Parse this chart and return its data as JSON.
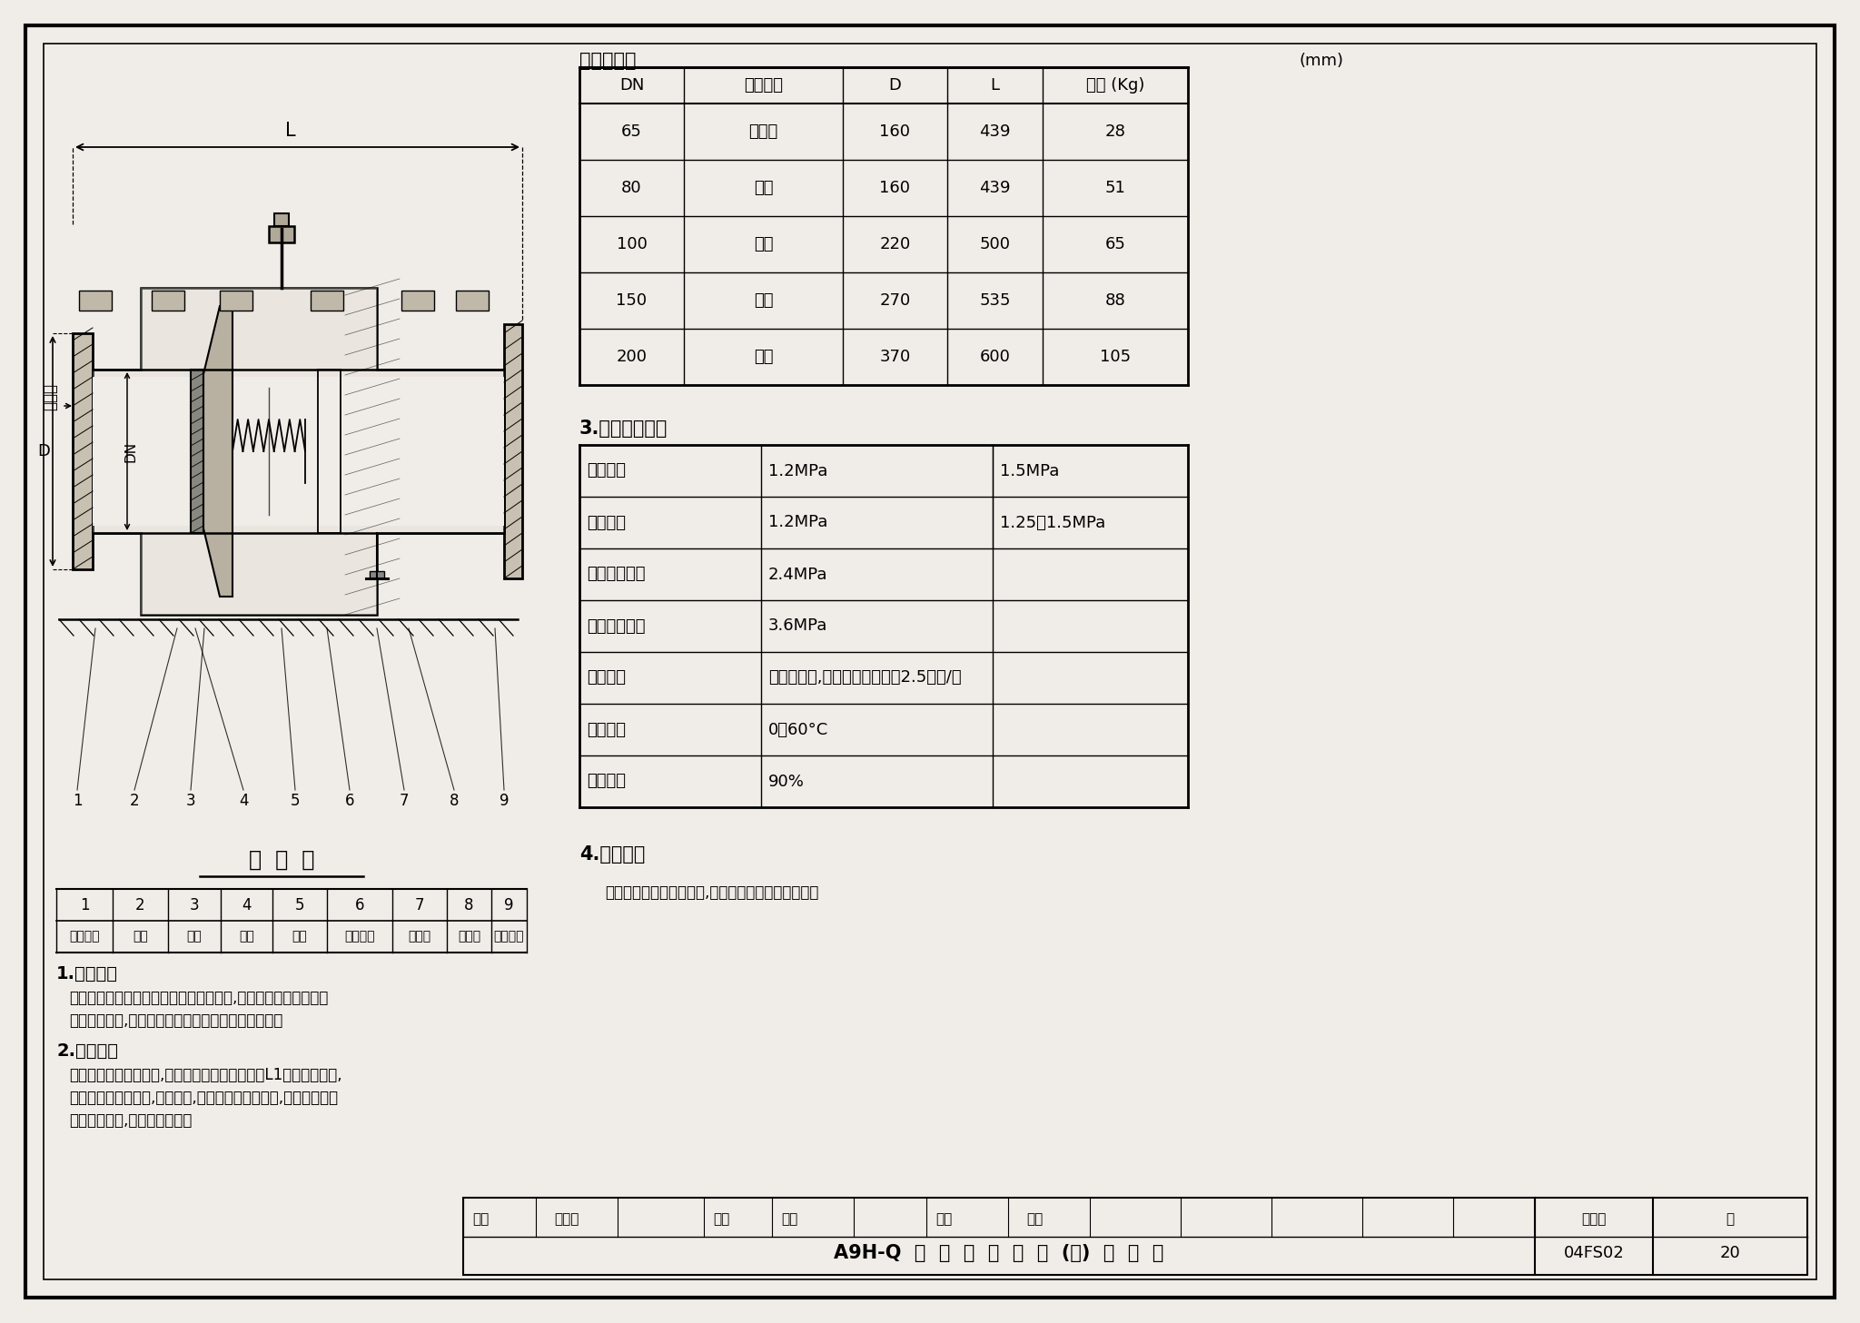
{
  "bg_color": "#f0ede8",
  "title": "A9H-Q  型  防  爆  波  阀  门  (乙)  选  用  图",
  "drawing_number": "04FS02",
  "page": "20",
  "spec_table_title": "规格尺寸表",
  "spec_table_unit": "(mm)",
  "spec_headers": [
    "DN",
    "连接方式",
    "D",
    "L",
    "重量 (Kg)"
  ],
  "spec_rows": [
    [
      "65",
      "管螺纹",
      "160",
      "439",
      "28"
    ],
    [
      "80",
      "法兰",
      "160",
      "439",
      "51"
    ],
    [
      "100",
      "法兰",
      "220",
      "500",
      "65"
    ],
    [
      "150",
      "法兰",
      "270",
      "535",
      "88"
    ],
    [
      "200",
      "法兰",
      "370",
      "600",
      "105"
    ]
  ],
  "tech_title": "3.主要技术参数",
  "tech_rows": [
    [
      "公称压力",
      "1.2MPa",
      "1.5MPa"
    ],
    [
      "工作压力",
      "1.2MPa",
      "1.25～1.5MPa"
    ],
    [
      "极限使用压力",
      "2.4MPa",
      ""
    ],
    [
      "强度试验压力",
      "3.6MPa",
      ""
    ],
    [
      "适用介质",
      "无腐蚀性水,悬浮物含量不大于2.5毫克/升",
      ""
    ],
    [
      "适用温度",
      "0～60°C",
      ""
    ],
    [
      "防护效率",
      "90%",
      ""
    ]
  ],
  "install_title": "4.安装要求",
  "install_text": "安装前检查阀板是否灵活,各联接件是否有松动现象。",
  "struct_title": "构  造  图",
  "part_names": [
    "进水法兰",
    "阀板",
    "弹簧",
    "阀座",
    "阀体",
    "安全装置",
    "消波室",
    "放水孔",
    "出水法兰"
  ],
  "scope_title": "1.适用范围",
  "scope_text1": "该产品适用安装在防护工程给水管道起端,防止冲击波沿管道进入",
  "scope_text2": "工程系统内部,从而保证防护系统内设备和人员安全。",
  "principle_title": "2.工作原理",
  "principle_text1": "在正常工作压力范围内,阀板受弹簧强力支承距离L1介质正常流通,",
  "principle_text2": "当冲击波压力进入时,阀板关闭,冲击波被挡在阀板前,已进入冲击波",
  "principle_text3": "由消波室消波,起到消波作用。",
  "row1_labels": [
    "审核",
    "许为民",
    "",
    "校对",
    "郭郧",
    "",
    "设计",
    "刘敏",
    ""
  ],
  "drawing_label": "图集号",
  "page_label": "页",
  "label_L": "L",
  "label_D": "D",
  "label_DN": "DN",
  "label_chongji": "冲击波"
}
